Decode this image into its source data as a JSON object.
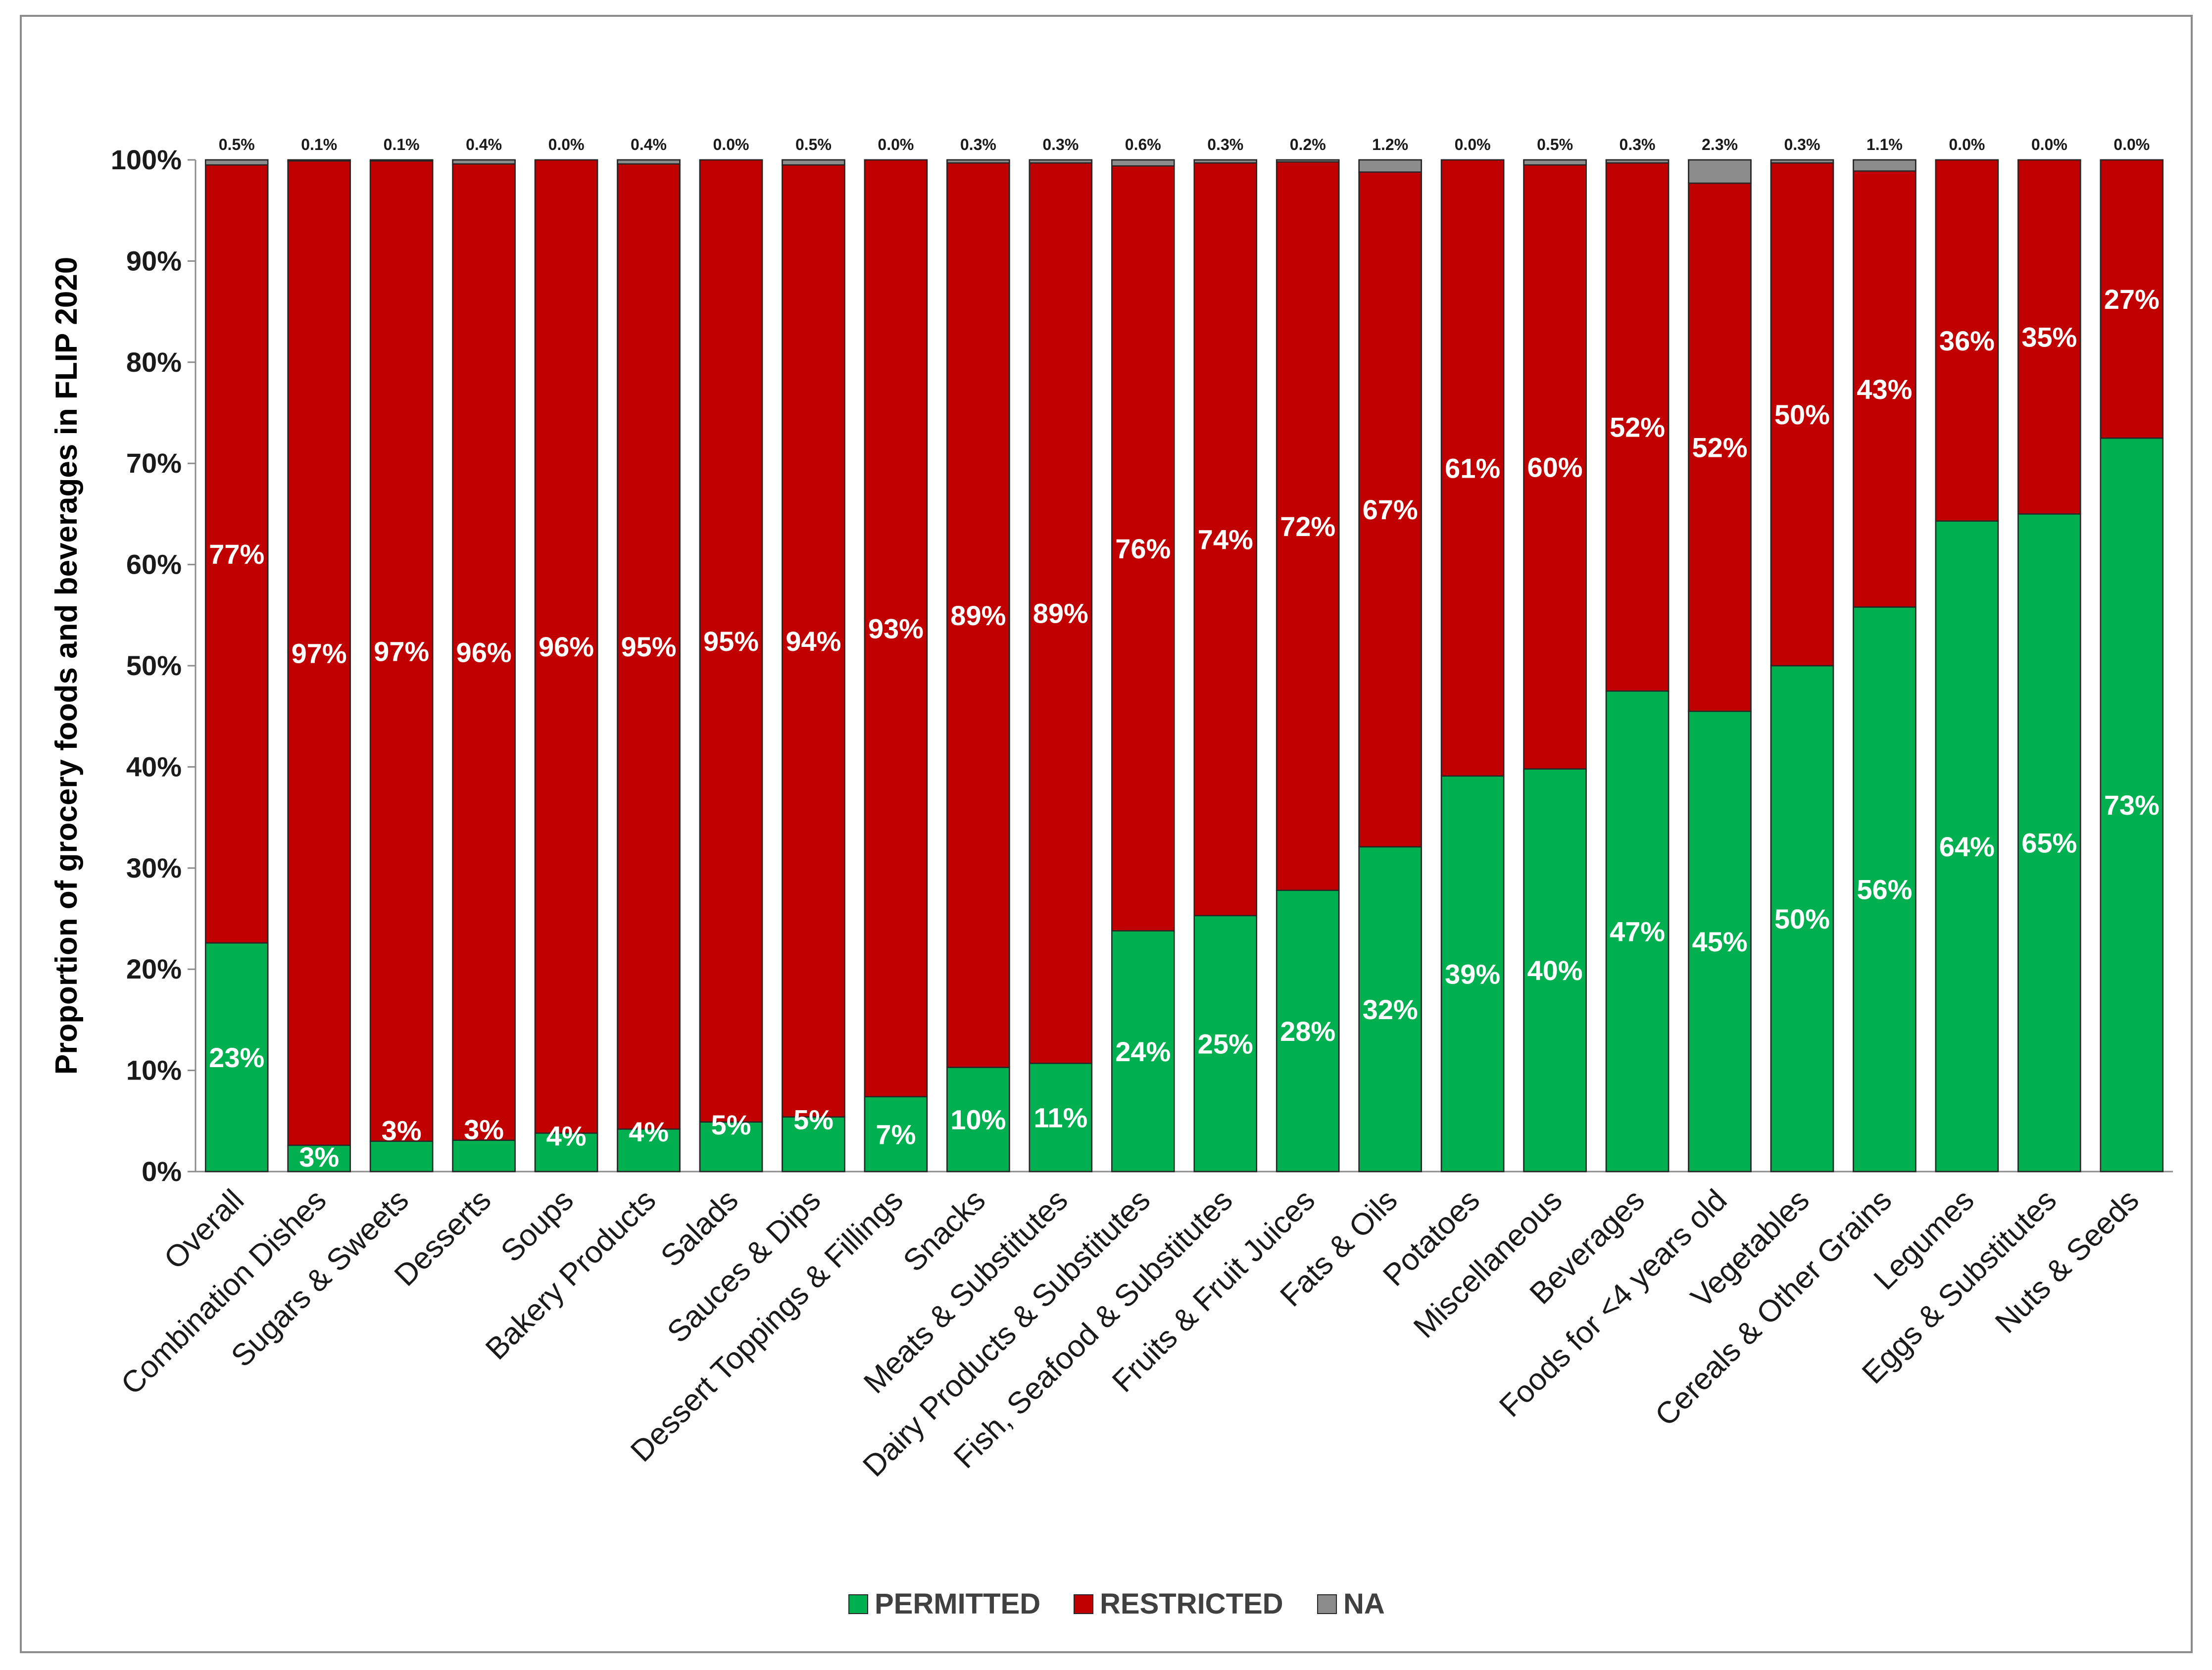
{
  "chart_data": {
    "type": "bar",
    "stacked": true,
    "title": "",
    "xlabel": "",
    "ylabel": "Proportion of grocery foods and beverages in FLIP 2020",
    "ylim": [
      0,
      100
    ],
    "yticks": [
      "0%",
      "10%",
      "20%",
      "30%",
      "40%",
      "50%",
      "60%",
      "70%",
      "80%",
      "90%",
      "100%"
    ],
    "legend_position": "bottom",
    "colors": {
      "PERMITTED": "#00b050",
      "RESTRICTED": "#c00000",
      "NA": "#8c8c8c"
    },
    "categories": [
      "Overall",
      "Combination Dishes",
      "Sugars & Sweets",
      "Desserts",
      "Soups",
      "Bakery Products",
      "Salads",
      "Sauces & Dips",
      "Dessert Toppings & Fillings",
      "Snacks",
      "Meats & Substitutes",
      "Dairy Products & Substitutes",
      "Fish, Seafood & Substitutes",
      "Fruits & Fruit Juices",
      "Fats & Oils",
      "Potatoes",
      "Miscellaneous",
      "Beverages",
      "Foods for <4 years old",
      "Vegetables",
      "Cereals & Other Grains",
      "Legumes",
      "Eggs & Substitutes",
      "Nuts & Seeds"
    ],
    "series": [
      {
        "name": "PERMITTED",
        "values": [
          22.6,
          2.6,
          3.0,
          3.1,
          3.8,
          4.2,
          4.9,
          5.4,
          7.4,
          10.3,
          10.7,
          23.8,
          25.3,
          27.8,
          32.1,
          39.1,
          39.8,
          47.5,
          45.5,
          50.0,
          55.8,
          64.3,
          65.0,
          72.5
        ],
        "labels": [
          "23%",
          "3%",
          "3%",
          "3%",
          "4%",
          "4%",
          "5%",
          "5%",
          "7%",
          "10%",
          "11%",
          "24%",
          "25%",
          "28%",
          "32%",
          "39%",
          "40%",
          "47%",
          "45%",
          "50%",
          "56%",
          "64%",
          "65%",
          "73%"
        ]
      },
      {
        "name": "RESTRICTED",
        "values": [
          76.9,
          97.3,
          96.9,
          96.5,
          96.2,
          95.4,
          95.1,
          94.1,
          92.6,
          89.4,
          89.0,
          75.6,
          74.4,
          72.0,
          66.7,
          60.9,
          59.7,
          52.2,
          52.2,
          49.7,
          43.1,
          35.7,
          35.0,
          27.5
        ],
        "labels": [
          "77%",
          "97%",
          "97%",
          "96%",
          "96%",
          "95%",
          "95%",
          "94%",
          "93%",
          "89%",
          "89%",
          "76%",
          "74%",
          "72%",
          "67%",
          "61%",
          "60%",
          "52%",
          "52%",
          "50%",
          "43%",
          "36%",
          "35%",
          "27%"
        ]
      },
      {
        "name": "NA",
        "values": [
          0.5,
          0.1,
          0.1,
          0.4,
          0.0,
          0.4,
          0.0,
          0.5,
          0.0,
          0.3,
          0.3,
          0.6,
          0.3,
          0.2,
          1.2,
          0.0,
          0.5,
          0.3,
          2.3,
          0.3,
          1.1,
          0.0,
          0.0,
          0.0
        ],
        "labels": [
          "0.5%",
          "0.1%",
          "0.1%",
          "0.4%",
          "0.0%",
          "0.4%",
          "0.0%",
          "0.5%",
          "0.0%",
          "0.3%",
          "0.3%",
          "0.6%",
          "0.3%",
          "0.2%",
          "1.2%",
          "0.0%",
          "0.5%",
          "0.3%",
          "2.3%",
          "0.3%",
          "1.1%",
          "0.0%",
          "0.0%",
          "0.0%"
        ]
      }
    ]
  }
}
